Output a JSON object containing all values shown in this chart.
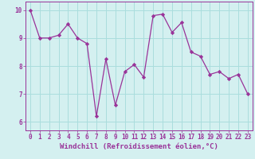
{
  "x": [
    0,
    1,
    2,
    3,
    4,
    5,
    6,
    7,
    8,
    9,
    10,
    11,
    12,
    13,
    14,
    15,
    16,
    17,
    18,
    19,
    20,
    21,
    22,
    23
  ],
  "y": [
    10.0,
    9.0,
    9.0,
    9.1,
    9.5,
    9.0,
    8.8,
    6.2,
    8.25,
    6.6,
    7.8,
    8.05,
    7.6,
    9.8,
    9.85,
    9.2,
    9.55,
    8.5,
    8.35,
    7.7,
    7.8,
    7.55,
    7.7,
    7.0
  ],
  "line_color": "#993399",
  "marker_color": "#993399",
  "bg_color": "#d4f0f0",
  "grid_color": "#aadddd",
  "axis_color": "#993399",
  "xlabel": "Windchill (Refroidissement éolien,°C)",
  "xlabel_fontsize": 6.5,
  "tick_fontsize": 5.5,
  "yticks": [
    6,
    7,
    8,
    9,
    10
  ],
  "ylim": [
    5.7,
    10.3
  ],
  "xlim": [
    -0.5,
    23.5
  ]
}
